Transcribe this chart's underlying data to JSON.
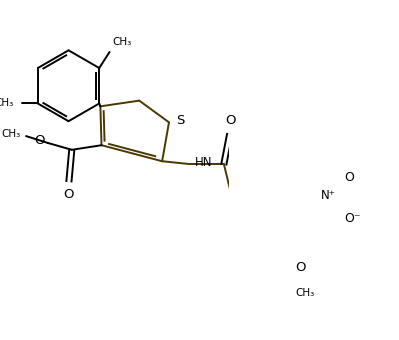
{
  "bg_color": "#ffffff",
  "lc": "#000000",
  "dc": "#4a3800",
  "lw": 1.4,
  "figsize": [
    3.99,
    3.4
  ],
  "dpi": 100,
  "xlim": [
    0,
    399
  ],
  "ylim": [
    0,
    340
  ]
}
